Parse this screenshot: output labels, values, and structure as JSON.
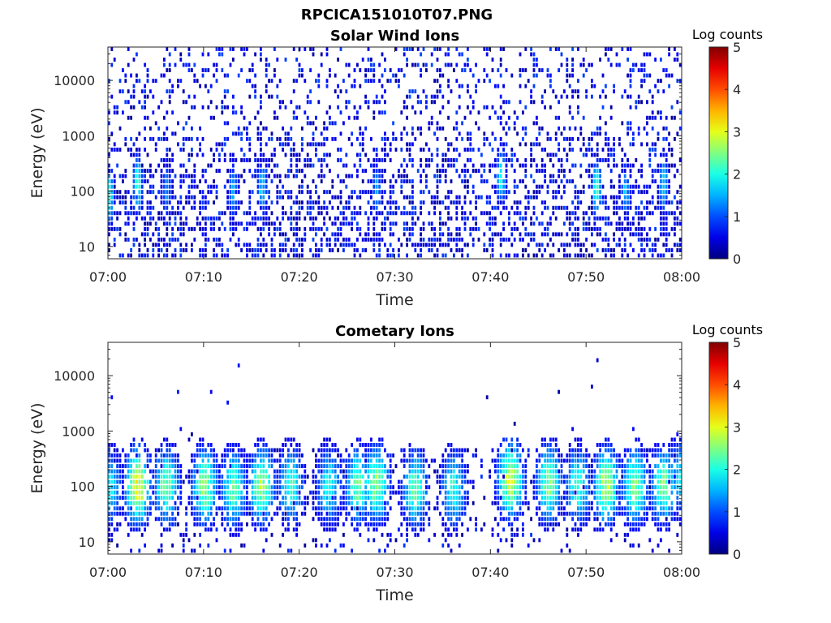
{
  "figure_title": "RPCICA151010T07.PNG",
  "chart_data": [
    {
      "type": "heatmap",
      "title": "Solar Wind Ions",
      "xlabel": "Time",
      "ylabel": "Energy (eV)",
      "x_ticks": [
        "07:00",
        "07:10",
        "07:20",
        "07:30",
        "07:40",
        "07:50",
        "08:00"
      ],
      "xlim": [
        "07:00",
        "08:00"
      ],
      "y_scale": "log",
      "y_ticks": [
        "10",
        "100",
        "1000",
        "10000"
      ],
      "ylim": [
        6,
        40000
      ],
      "colorbar": {
        "label": "Log counts",
        "ticks": [
          "0",
          "1",
          "2",
          "3",
          "4",
          "5"
        ],
        "range": [
          0,
          5
        ],
        "colormap": "jet"
      },
      "features": [
        {
          "time": "07:00",
          "energy_eV": 80,
          "log_counts": 1.9
        },
        {
          "time": "07:03",
          "energy_eV": 130,
          "log_counts": 2.0
        },
        {
          "time": "07:06",
          "energy_eV": 100,
          "log_counts": 1.2
        },
        {
          "time": "07:13",
          "energy_eV": 100,
          "log_counts": 1.3
        },
        {
          "time": "07:16",
          "energy_eV": 110,
          "log_counts": 1.5
        },
        {
          "time": "07:28",
          "energy_eV": 100,
          "log_counts": 1.3
        },
        {
          "time": "07:41",
          "energy_eV": 180,
          "log_counts": 1.9
        },
        {
          "time": "07:51",
          "energy_eV": 110,
          "log_counts": 2.0
        },
        {
          "time": "07:54",
          "energy_eV": 100,
          "log_counts": 1.4
        },
        {
          "time": "07:58",
          "energy_eV": 130,
          "log_counts": 1.6
        }
      ]
    },
    {
      "type": "heatmap",
      "title": "Cometary Ions",
      "xlabel": "Time",
      "ylabel": "Energy (eV)",
      "x_ticks": [
        "07:00",
        "07:10",
        "07:20",
        "07:30",
        "07:40",
        "07:50",
        "08:00"
      ],
      "xlim": [
        "07:00",
        "08:00"
      ],
      "y_scale": "log",
      "y_ticks": [
        "10",
        "100",
        "1000",
        "10000"
      ],
      "ylim": [
        6,
        40000
      ],
      "colorbar": {
        "label": "Log counts",
        "ticks": [
          "0",
          "1",
          "2",
          "3",
          "4",
          "5"
        ],
        "range": [
          0,
          5
        ],
        "colormap": "jet"
      },
      "features": [
        {
          "time": "07:00",
          "energy_eV": 90,
          "log_counts": 1.7
        },
        {
          "time": "07:03",
          "energy_eV": 100,
          "log_counts": 3.0
        },
        {
          "time": "07:06",
          "energy_eV": 100,
          "log_counts": 2.3
        },
        {
          "time": "07:10",
          "energy_eV": 100,
          "log_counts": 2.5
        },
        {
          "time": "07:13",
          "energy_eV": 90,
          "log_counts": 2.2
        },
        {
          "time": "07:16",
          "energy_eV": 100,
          "log_counts": 2.6
        },
        {
          "time": "07:19",
          "energy_eV": 100,
          "log_counts": 2.0
        },
        {
          "time": "07:23",
          "energy_eV": 100,
          "log_counts": 1.8
        },
        {
          "time": "07:26",
          "energy_eV": 100,
          "log_counts": 2.3
        },
        {
          "time": "07:28",
          "energy_eV": 110,
          "log_counts": 2.5
        },
        {
          "time": "07:32",
          "energy_eV": 90,
          "log_counts": 2.2
        },
        {
          "time": "07:36",
          "energy_eV": 90,
          "log_counts": 1.9
        },
        {
          "time": "07:42",
          "energy_eV": 130,
          "log_counts": 2.9
        },
        {
          "time": "07:46",
          "energy_eV": 110,
          "log_counts": 2.4
        },
        {
          "time": "07:49",
          "energy_eV": 100,
          "log_counts": 2.0
        },
        {
          "time": "07:52",
          "energy_eV": 100,
          "log_counts": 2.7
        },
        {
          "time": "07:55",
          "energy_eV": 100,
          "log_counts": 2.4
        },
        {
          "time": "07:58",
          "energy_eV": 100,
          "log_counts": 2.3
        },
        {
          "time": "08:00",
          "energy_eV": 150,
          "log_counts": 1.8
        }
      ]
    }
  ]
}
